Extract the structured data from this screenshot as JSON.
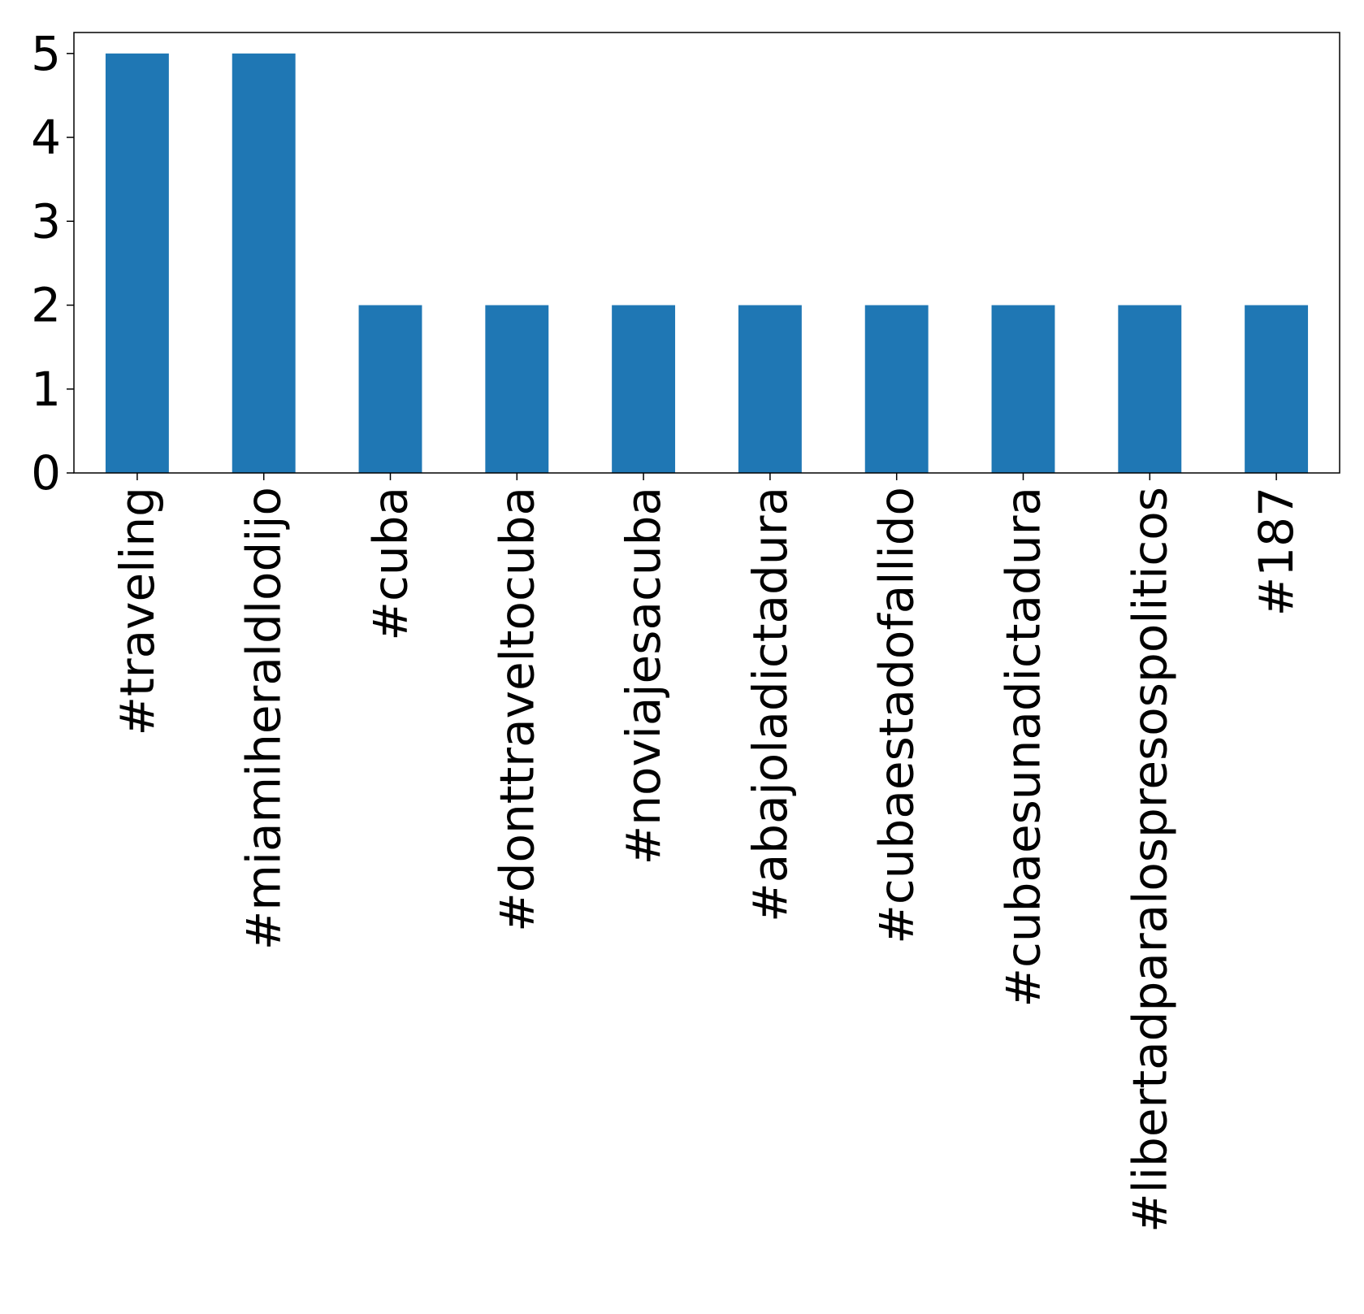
{
  "chart_data": {
    "type": "bar",
    "title": "",
    "xlabel": "",
    "ylabel": "",
    "categories": [
      "#traveling",
      "#miamiheraldlodijo",
      "#cuba",
      "#donttraveltocuba",
      "#noviajesacuba",
      "#abajoladictadura",
      "#cubaestadofallido",
      "#cubaesunadictadura",
      "#libertadparalospresospoliticos",
      "#187"
    ],
    "values": [
      5,
      5,
      2,
      2,
      2,
      2,
      2,
      2,
      2,
      2
    ],
    "ylim": [
      0,
      5.25
    ],
    "yticks": [
      0,
      1,
      2,
      3,
      4,
      5
    ],
    "bar_color": "#1f77b4",
    "grid": false,
    "legend": false,
    "xtick_rotation": "vertical"
  }
}
